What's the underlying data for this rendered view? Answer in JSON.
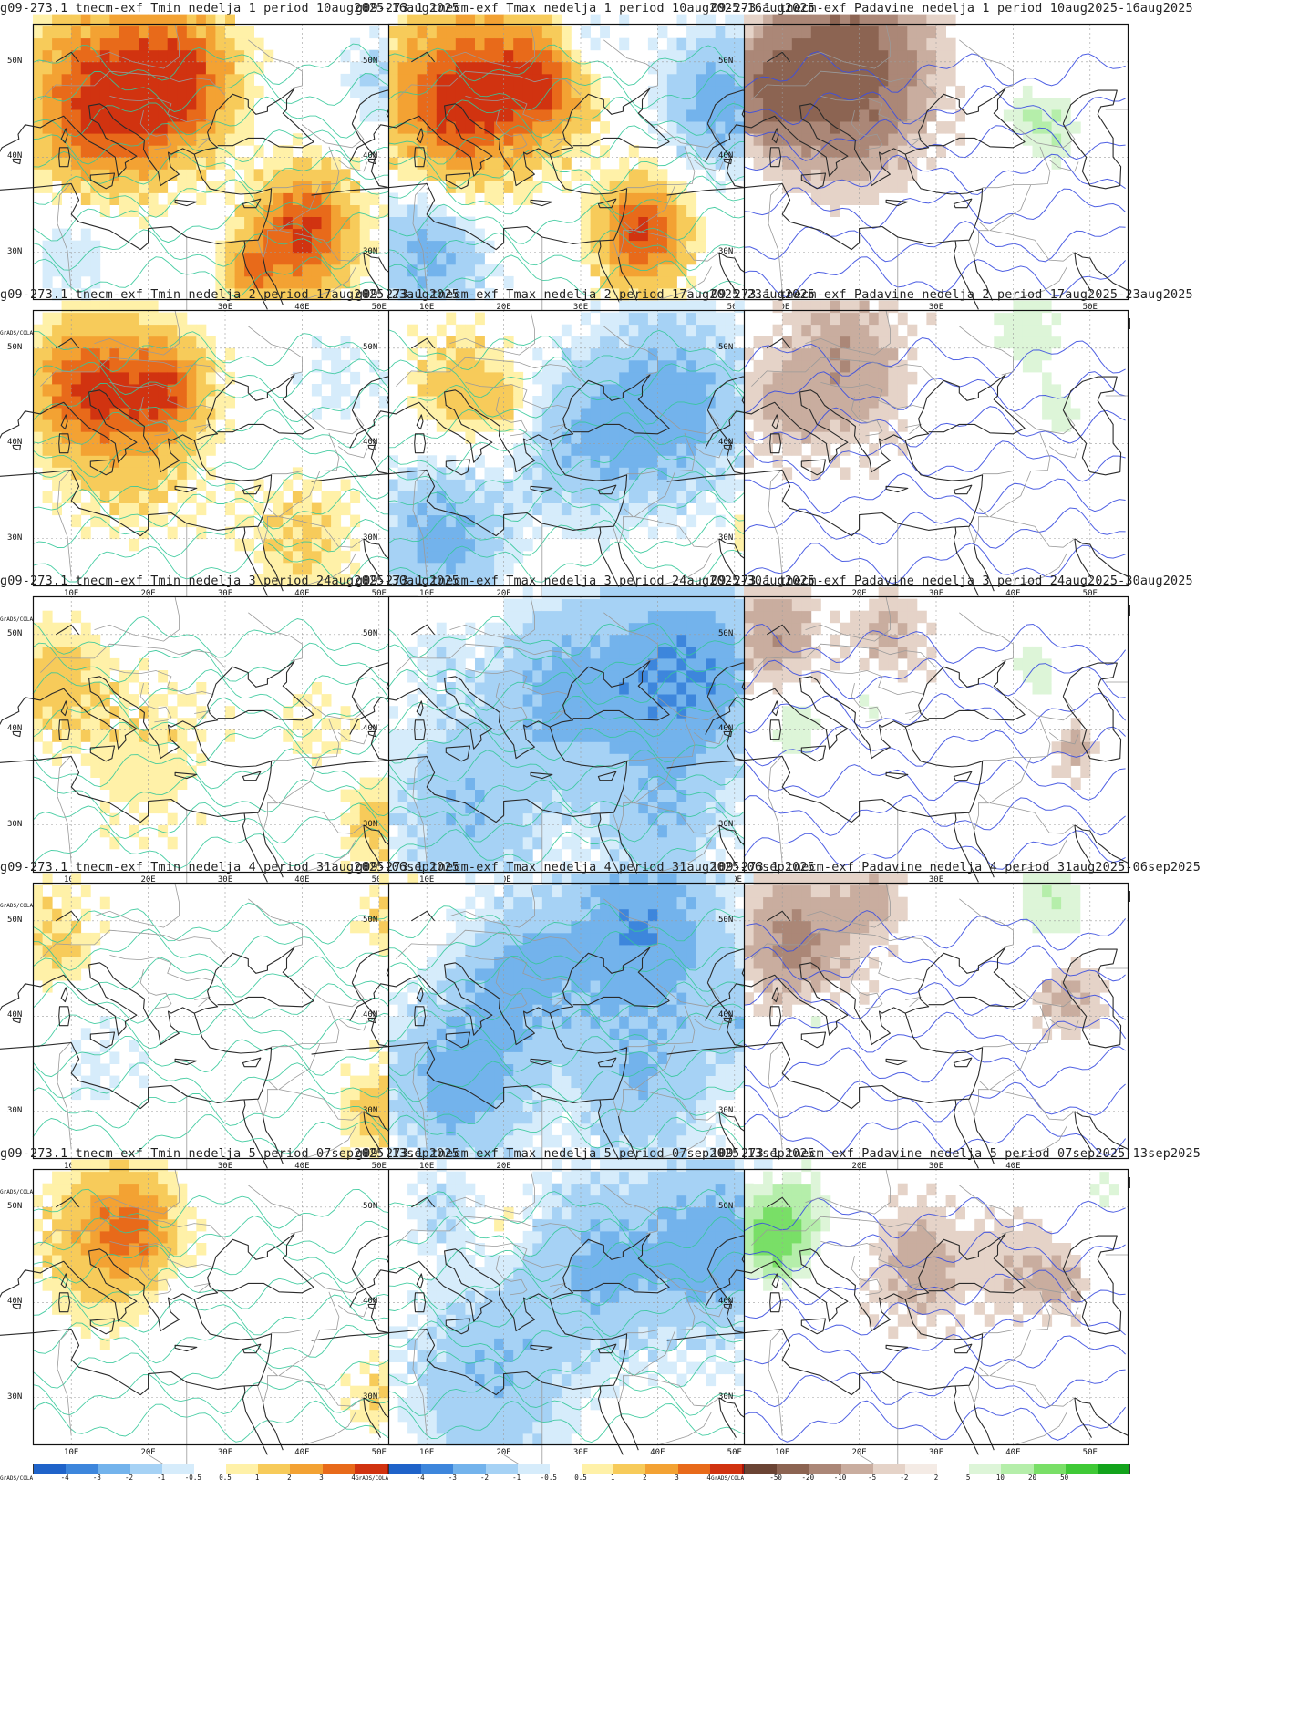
{
  "page": {
    "layout": "5 rows x 3 columns of weather anomaly maps"
  },
  "colors": {
    "temp_scale": [
      "#1f63c9",
      "#3d86dc",
      "#73b3ec",
      "#a6d2f5",
      "#d6ecfb",
      "#ffffff",
      "#fff1a8",
      "#f7cb5a",
      "#f3a233",
      "#e86a1a",
      "#d13310",
      "#a81208"
    ],
    "precip_scale": [
      "#6b4434",
      "#8c6452",
      "#ab8777",
      "#c9ad9f",
      "#e5d3c8",
      "#f4ebe5",
      "#ffffff",
      "#ddf5d8",
      "#b5eeaa",
      "#79df67",
      "#3fc936",
      "#13a31c"
    ],
    "contour_temp": "#35c89a",
    "contour_precip": "#3c4fe0",
    "coast": "#2b2b2b",
    "border": "#9a9a9a"
  },
  "axes": {
    "y_ticks": [
      "50N",
      "40N",
      "30N"
    ],
    "x_ticks": [
      "10E",
      "20E",
      "30E",
      "40E",
      "50E"
    ],
    "lon_range": [
      5,
      55
    ],
    "lat_range": [
      25,
      54
    ]
  },
  "colorbar": {
    "brand": "GrADS/COLA",
    "temp_labels": [
      "-4",
      "-3",
      "-2",
      "-1",
      "-0.5",
      "0.5",
      "1",
      "2",
      "3",
      "4"
    ],
    "precip_labels": [
      "-50",
      "-20",
      "-10",
      "-5",
      "-2",
      "2",
      "5",
      "10",
      "20",
      "50"
    ]
  },
  "panels": [
    {
      "title": "g09-273.1 tnecm-exf Tmin nedelja 1 period 10aug2025-16aug2025",
      "kind": "temp",
      "anoms": [
        {
          "lon": 14,
          "lat": 46,
          "val": 4.5,
          "r": 11
        },
        {
          "lon": 24,
          "lat": 48,
          "val": 4.0,
          "r": 9
        },
        {
          "lon": 40,
          "lat": 32,
          "val": 4.3,
          "r": 8
        },
        {
          "lon": 33,
          "lat": 28,
          "val": 2.5,
          "r": 4
        },
        {
          "lon": 50,
          "lat": 48,
          "val": -1.2,
          "r": 6
        },
        {
          "lon": 10,
          "lat": 30,
          "val": -1.0,
          "r": 7
        }
      ]
    },
    {
      "title": "g09-273.1 tnecm-exf Tmax nedelja 1 period 10aug2025-16aug2025",
      "kind": "temp",
      "anoms": [
        {
          "lon": 14,
          "lat": 46,
          "val": 4.6,
          "r": 11
        },
        {
          "lon": 25,
          "lat": 48,
          "val": 3.8,
          "r": 8
        },
        {
          "lon": 38,
          "lat": 32,
          "val": 4.2,
          "r": 7
        },
        {
          "lon": 48,
          "lat": 46,
          "val": -2.5,
          "r": 9
        },
        {
          "lon": 10,
          "lat": 30,
          "val": -2.4,
          "r": 9
        },
        {
          "lon": 30,
          "lat": 52,
          "val": -1.5,
          "r": 6
        }
      ]
    },
    {
      "title": "09-273.1 tnecm-exf Padavine nedelja 1 period 10aug2025-16aug2025",
      "kind": "precip",
      "anoms": [
        {
          "lon": 18,
          "lat": 49,
          "val": -30,
          "r": 11
        },
        {
          "lon": 9,
          "lat": 47,
          "val": -20,
          "r": 6
        },
        {
          "lon": 45,
          "lat": 43,
          "val": 10,
          "r": 5
        },
        {
          "lon": 41,
          "lat": 44,
          "val": 5,
          "r": 4
        }
      ]
    },
    {
      "title": "g09-273.1 tnecm-exf Tmin nedelja 2 period 17aug2025-23aug2025",
      "kind": "temp",
      "anoms": [
        {
          "lon": 12,
          "lat": 46,
          "val": 3.4,
          "r": 8
        },
        {
          "lon": 22,
          "lat": 46,
          "val": 3.0,
          "r": 6
        },
        {
          "lon": 18,
          "lat": 42,
          "val": 1.8,
          "r": 12
        },
        {
          "lon": 40,
          "lat": 30,
          "val": 1.2,
          "r": 9
        },
        {
          "lon": 45,
          "lat": 47,
          "val": -0.6,
          "r": 8
        }
      ]
    },
    {
      "title": "g09-273.1 tnecm-exf Tmax nedelja 2 period 17aug2025-23aug2025",
      "kind": "temp",
      "anoms": [
        {
          "lon": 14,
          "lat": 46,
          "val": 1.5,
          "r": 8
        },
        {
          "lon": 20,
          "lat": 44,
          "val": 1.2,
          "r": 5
        },
        {
          "lon": 42,
          "lat": 44,
          "val": -2.6,
          "r": 12
        },
        {
          "lon": 30,
          "lat": 40,
          "val": -1.7,
          "r": 11
        },
        {
          "lon": 12,
          "lat": 30,
          "val": -2.4,
          "r": 10
        },
        {
          "lon": 52,
          "lat": 30,
          "val": 1.5,
          "r": 3
        }
      ]
    },
    {
      "title": "09-273.1 tnecm-exf Padavine nedelja 2 period 17aug2025-23aug2025",
      "kind": "precip",
      "anoms": [
        {
          "lon": 18,
          "lat": 48,
          "val": -10,
          "r": 9
        },
        {
          "lon": 10,
          "lat": 44,
          "val": -6,
          "r": 6
        },
        {
          "lon": 42,
          "lat": 52,
          "val": 8,
          "r": 7
        },
        {
          "lon": 46,
          "lat": 43,
          "val": 6,
          "r": 5
        }
      ]
    },
    {
      "title": "g09-273.1 tnecm-exf Tmin nedelja 3 period 24aug2025-30aug2025",
      "kind": "temp",
      "anoms": [
        {
          "lon": 8,
          "lat": 45,
          "val": 1.4,
          "r": 8
        },
        {
          "lon": 20,
          "lat": 38,
          "val": 0.8,
          "r": 12
        },
        {
          "lon": 50,
          "lat": 30,
          "val": 1.4,
          "r": 6
        },
        {
          "lon": 42,
          "lat": 40,
          "val": 0.7,
          "r": 6
        }
      ]
    },
    {
      "title": "g09-273.1 tnecm-exf Tmax nedelja 3 period 24aug2025-30aug2025",
      "kind": "temp",
      "anoms": [
        {
          "lon": 44,
          "lat": 46,
          "val": -3.0,
          "r": 13
        },
        {
          "lon": 28,
          "lat": 44,
          "val": -2.2,
          "r": 12
        },
        {
          "lon": 15,
          "lat": 32,
          "val": -1.8,
          "r": 13
        },
        {
          "lon": 40,
          "lat": 30,
          "val": -1.6,
          "r": 10
        },
        {
          "lon": 11,
          "lat": 48,
          "val": -0.6,
          "r": 5
        }
      ]
    },
    {
      "title": "09-273.1 tnecm-exf Padavine nedelja 3 period 24aug2025-30aug2025",
      "kind": "precip",
      "anoms": [
        {
          "lon": 9,
          "lat": 50,
          "val": -10,
          "r": 6
        },
        {
          "lon": 24,
          "lat": 50,
          "val": -6,
          "r": 6
        },
        {
          "lon": 12,
          "lat": 40,
          "val": 10,
          "r": 4
        },
        {
          "lon": 22,
          "lat": 43,
          "val": 6,
          "r": 4
        },
        {
          "lon": 43,
          "lat": 46,
          "val": 8,
          "r": 4
        },
        {
          "lon": 48,
          "lat": 38,
          "val": -8,
          "r": 3
        }
      ]
    },
    {
      "title": "g09-273.1 tnecm-exf Tmin nedelja 4 period 31aug2025-06sep2025",
      "kind": "temp",
      "anoms": [
        {
          "lon": 8,
          "lat": 48,
          "val": 1.2,
          "r": 7
        },
        {
          "lon": 52,
          "lat": 50,
          "val": 1.0,
          "r": 6
        },
        {
          "lon": 50,
          "lat": 30,
          "val": 1.5,
          "r": 6
        },
        {
          "lon": 14,
          "lat": 34,
          "val": -0.6,
          "r": 8
        }
      ]
    },
    {
      "title": "g09-273.1 tnecm-exf Tmax nedelja 4 period 31aug2025-06sep2025",
      "kind": "temp",
      "anoms": [
        {
          "lon": 38,
          "lat": 49,
          "val": -3.0,
          "r": 13
        },
        {
          "lon": 22,
          "lat": 44,
          "val": -2.2,
          "r": 10
        },
        {
          "lon": 14,
          "lat": 33,
          "val": -2.6,
          "r": 11
        },
        {
          "lon": 38,
          "lat": 32,
          "val": -1.8,
          "r": 11
        },
        {
          "lon": 52,
          "lat": 40,
          "val": -1.4,
          "r": 7
        }
      ]
    },
    {
      "title": "i09-273.1 tnecm-exf Padavine nedelja 4 period 31aug2025-06sep2025",
      "kind": "precip",
      "anoms": [
        {
          "lon": 12,
          "lat": 48,
          "val": -12,
          "r": 8
        },
        {
          "lon": 22,
          "lat": 52,
          "val": -6,
          "r": 5
        },
        {
          "lon": 47,
          "lat": 42,
          "val": -7,
          "r": 5
        },
        {
          "lon": 45,
          "lat": 52,
          "val": 10,
          "r": 6
        },
        {
          "lon": 14,
          "lat": 39,
          "val": 6,
          "r": 4
        }
      ]
    },
    {
      "title": "g09-273.1 tnecm-exf Tmin nedelja 5 period 07sep2025-13sep2025",
      "kind": "temp",
      "anoms": [
        {
          "lon": 18,
          "lat": 48,
          "val": 2.5,
          "r": 7
        },
        {
          "lon": 13,
          "lat": 46,
          "val": 1.5,
          "r": 10
        },
        {
          "lon": 50,
          "lat": 30,
          "val": 1.0,
          "r": 5
        }
      ]
    },
    {
      "title": "g09-273.1 tnecm-exf Tmax nedelja 5 period 07sep2025-13sep2025",
      "kind": "temp",
      "anoms": [
        {
          "lon": 48,
          "lat": 46,
          "val": -2.6,
          "r": 12
        },
        {
          "lon": 32,
          "lat": 44,
          "val": -2.0,
          "r": 12
        },
        {
          "lon": 18,
          "lat": 32,
          "val": -1.9,
          "r": 13
        },
        {
          "lon": 20,
          "lat": 48,
          "val": 1.0,
          "r": 4
        },
        {
          "lon": 12,
          "lat": 50,
          "val": -1.0,
          "r": 6
        }
      ]
    },
    {
      "title": "i09-273.1 tnecm-exf Padavine nedelja 5 period 07sep2025-13sep2025",
      "kind": "precip",
      "anoms": [
        {
          "lon": 9,
          "lat": 47,
          "val": 30,
          "r": 5
        },
        {
          "lon": 12,
          "lat": 50,
          "val": 8,
          "r": 6
        },
        {
          "lon": 28,
          "lat": 44,
          "val": -8,
          "r": 7
        },
        {
          "lon": 40,
          "lat": 44,
          "val": -5,
          "r": 6
        },
        {
          "lon": 46,
          "lat": 42,
          "val": -7,
          "r": 4
        },
        {
          "lon": 52,
          "lat": 52,
          "val": 6,
          "r": 5
        }
      ]
    }
  ]
}
